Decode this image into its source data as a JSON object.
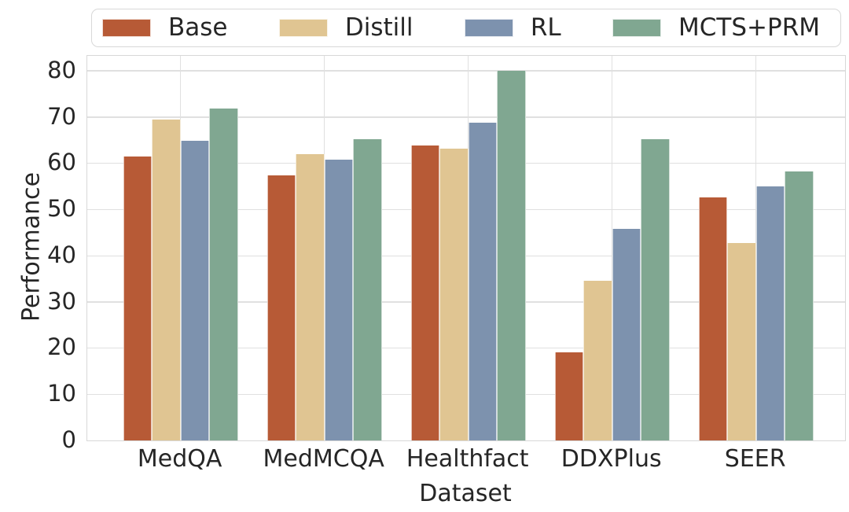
{
  "chart_data": {
    "type": "bar",
    "title": "",
    "xlabel": "Dataset",
    "ylabel": "Performance",
    "categories": [
      "MedQA",
      "MedMCQA",
      "Healthfact",
      "DDXPlus",
      "SEER"
    ],
    "series": [
      {
        "name": "Base",
        "color": "#b75a36",
        "values": [
          61.5,
          57.3,
          63.8,
          19.1,
          52.5
        ]
      },
      {
        "name": "Distill",
        "color": "#e0c592",
        "values": [
          69.5,
          62.0,
          63.2,
          34.5,
          42.7
        ]
      },
      {
        "name": "RL",
        "color": "#7d92ae",
        "values": [
          64.8,
          60.7,
          68.8,
          45.8,
          55.0
        ]
      },
      {
        "name": "MCTS+PRM",
        "color": "#80a791",
        "values": [
          71.8,
          65.1,
          80.0,
          65.1,
          58.2
        ]
      }
    ],
    "ylim": [
      0,
      83.2
    ],
    "yticks": [
      0,
      10,
      20,
      30,
      40,
      50,
      60,
      70,
      80
    ],
    "grid": true,
    "legend_position": "top"
  },
  "colors": {
    "grid": "#e0e0e0",
    "spine": "#d8d8d8",
    "text": "#262626",
    "background": "#ffffff",
    "legend_border": "#d8d8d8"
  }
}
